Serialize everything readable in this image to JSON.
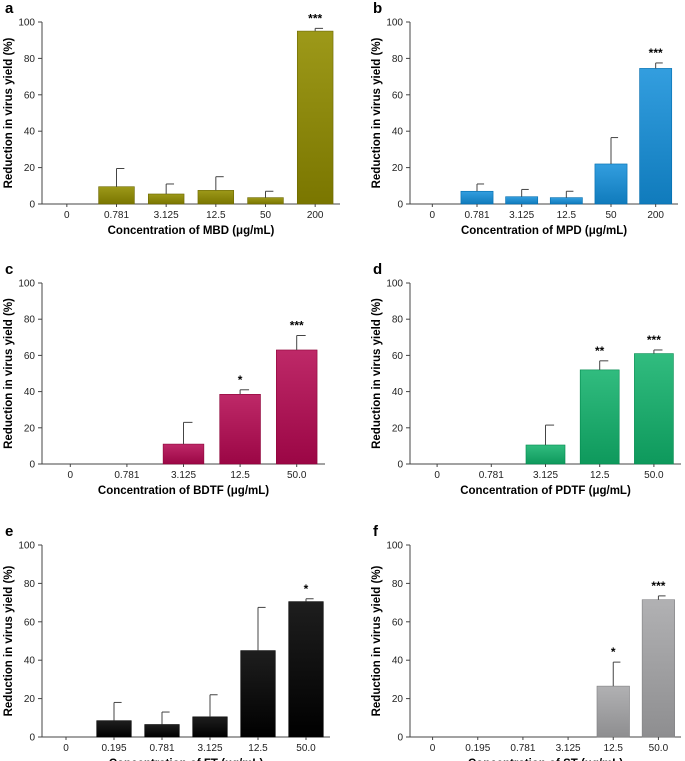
{
  "chart_data": [
    {
      "panel": "a",
      "type": "bar",
      "categories": [
        "0",
        "0.781",
        "3.125",
        "12.5",
        "50",
        "200"
      ],
      "values": [
        0,
        9.5,
        5.5,
        7.5,
        3.5,
        95
      ],
      "errors": [
        0,
        10,
        5.5,
        7.5,
        3.5,
        1.5
      ],
      "significance": [
        "",
        "",
        "",
        "",
        "",
        "***"
      ],
      "xlabel": "Concentration of MBD (μg/mL)",
      "ylabel": "Reduction in virus yield (%)",
      "ylim": [
        0,
        100
      ],
      "yticks": [
        "0",
        "20",
        "40",
        "60",
        "80",
        "100"
      ],
      "color": "#848000"
    },
    {
      "panel": "b",
      "type": "bar",
      "categories": [
        "0",
        "0.781",
        "3.125",
        "12.5",
        "50",
        "200"
      ],
      "values": [
        0,
        7,
        4,
        3.5,
        22,
        74.5
      ],
      "errors": [
        0,
        4,
        4,
        3.5,
        14.5,
        3
      ],
      "significance": [
        "",
        "",
        "",
        "",
        "",
        "***"
      ],
      "xlabel": "Concentration of MPD (μg/mL)",
      "ylabel": "Reduction in virus yield (%)",
      "ylim": [
        0,
        100
      ],
      "yticks": [
        "0",
        "20",
        "40",
        "60",
        "80",
        "100"
      ],
      "color": "#1a85c6"
    },
    {
      "panel": "c",
      "type": "bar",
      "categories": [
        "0",
        "0.781",
        "3.125",
        "12.5",
        "50.0"
      ],
      "values": [
        0,
        0,
        11,
        38.5,
        63
      ],
      "errors": [
        0,
        0,
        12,
        2.5,
        8
      ],
      "significance": [
        "",
        "",
        "",
        "*",
        "***"
      ],
      "xlabel": "Concentration of BDTF (μg/mL)",
      "ylabel": "Reduction in virus yield (%)",
      "ylim": [
        0,
        100
      ],
      "yticks": [
        "0",
        "20",
        "40",
        "60",
        "80",
        "100"
      ],
      "color": "#a5104f"
    },
    {
      "panel": "d",
      "type": "bar",
      "categories": [
        "0",
        "0.781",
        "3.125",
        "12.5",
        "50.0"
      ],
      "values": [
        0,
        0,
        10.5,
        52,
        61
      ],
      "errors": [
        0,
        0,
        11,
        5,
        2
      ],
      "significance": [
        "",
        "",
        "",
        "**",
        "***"
      ],
      "xlabel": "Concentration of PDTF (μg/mL)",
      "ylabel": "Reduction in virus yield (%)",
      "ylim": [
        0,
        100
      ],
      "yticks": [
        "0",
        "20",
        "40",
        "60",
        "80",
        "100"
      ],
      "color": "#18a366"
    },
    {
      "panel": "e",
      "type": "bar",
      "categories": [
        "0",
        "0.195",
        "0.781",
        "3.125",
        "12.5",
        "50.0"
      ],
      "values": [
        0,
        8.5,
        6.5,
        10.5,
        45,
        70.5
      ],
      "errors": [
        0,
        9.5,
        6.5,
        11.5,
        22.5,
        1.5
      ],
      "significance": [
        "",
        "",
        "",
        "",
        "",
        "*"
      ],
      "xlabel": "Concentration of FT (μg/mL)",
      "ylabel": "Reduction in virus yield (%)",
      "ylim": [
        0,
        100
      ],
      "yticks": [
        "0",
        "20",
        "40",
        "60",
        "80",
        "100"
      ],
      "color": "#050505"
    },
    {
      "panel": "f",
      "type": "bar",
      "categories": [
        "0",
        "0.195",
        "0.781",
        "3.125",
        "12.5",
        "50.0"
      ],
      "values": [
        0,
        0,
        0,
        0,
        26.5,
        71.5
      ],
      "errors": [
        0,
        0,
        0,
        0,
        12.5,
        2
      ],
      "significance": [
        "",
        "",
        "",
        "",
        "*",
        "***"
      ],
      "xlabel": "Concentration of ST (μg/mL)",
      "ylabel": "Reduction in virus yield (%)",
      "ylim": [
        0,
        100
      ],
      "yticks": [
        "0",
        "20",
        "40",
        "60",
        "80",
        "100"
      ],
      "color": "#98989a"
    }
  ]
}
